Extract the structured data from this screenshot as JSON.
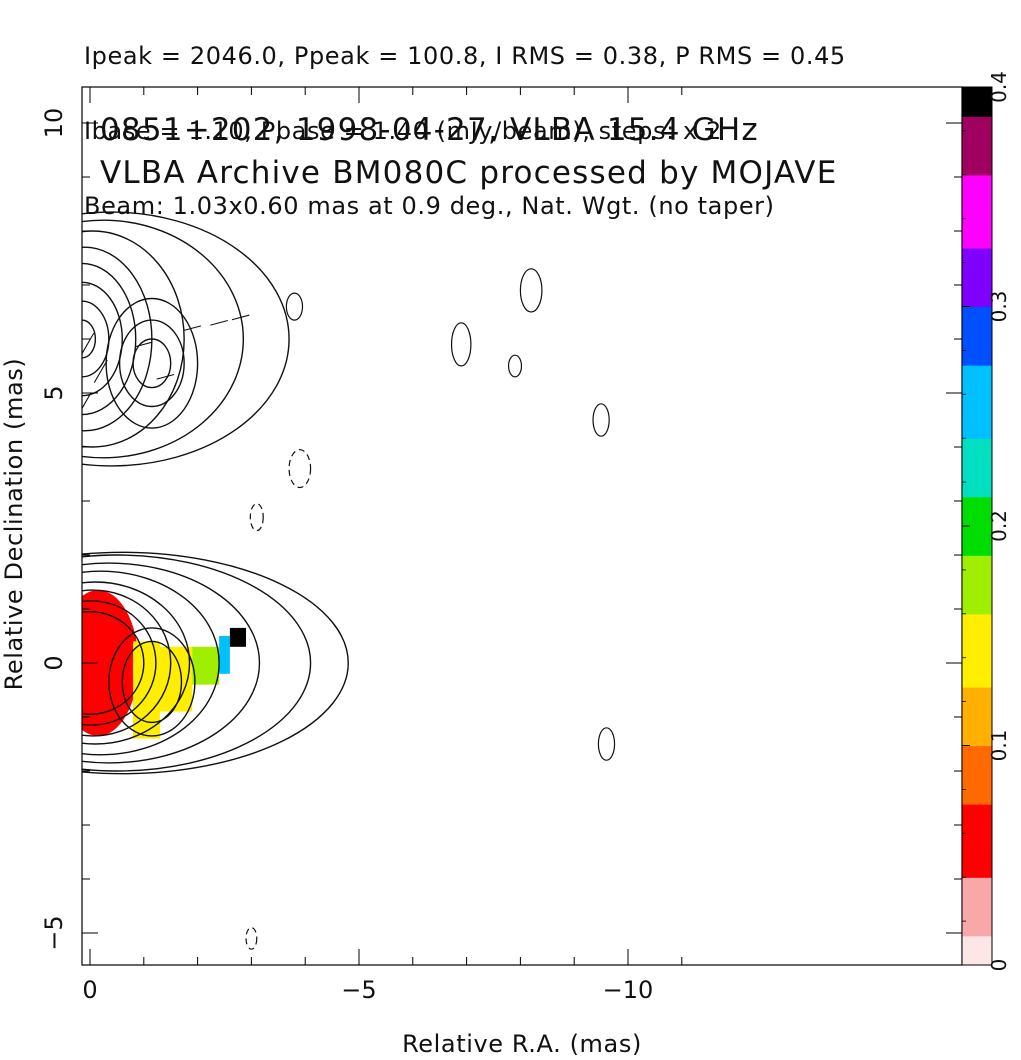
{
  "header": {
    "line1": "Ipeak = 2046.0, Ppeak = 100.8, I RMS = 0.38, P RMS = 0.45",
    "line2": "Ibase = 1.10, Pbase = 1.40 (mJy/beam), steps: x 2",
    "line3": "Beam: 1.03x0.60 mas at 0.9 deg., Nat. Wgt. (no taper)"
  },
  "chart_data": {
    "type": "heatmap",
    "title": "0851+202, 1998-04-27, VLBA 15.4 GHz",
    "subtitle": "VLBA Archive BM080C processed by MOJAVE",
    "xlabel": "Relative R.A. (mas)",
    "ylabel": "Relative Declination (mas)",
    "xlim": [
      5.2,
      -11.0
    ],
    "ylim": [
      -5.5,
      10.5
    ],
    "x_ticks": [
      5,
      0,
      -5,
      -10
    ],
    "x_tick_labels": [
      "5",
      "0",
      "−5",
      "−10"
    ],
    "y_ticks": [
      -5,
      0,
      5,
      10
    ],
    "y_tick_labels": [
      "−5",
      "0",
      "5",
      "10"
    ],
    "grid": false,
    "colorbar": {
      "min": 0,
      "max": 0.4,
      "ticks": [
        0,
        0.1,
        0.2,
        0.3,
        0.4
      ],
      "tick_labels": [
        "0",
        "0.1",
        "0.2",
        "0.3",
        "0.4"
      ],
      "colors": [
        "#fde6e6",
        "#f8a8a8",
        "#ff0000",
        "#ff6a00",
        "#ffb000",
        "#ffee00",
        "#a0ee00",
        "#00dd00",
        "#00e0c0",
        "#00c0ff",
        "#0050ff",
        "#8000ff",
        "#ff00ff",
        "#a00060",
        "#000000"
      ]
    },
    "contours": [
      {
        "source": "core",
        "x": 0.0,
        "y": 0.0,
        "levels": [
          [
            1.0,
            0.95
          ],
          [
            1.2,
            1.15
          ],
          [
            1.45,
            1.35
          ],
          [
            1.75,
            1.5
          ],
          [
            2.2,
            1.7
          ],
          [
            2.8,
            1.85
          ],
          [
            3.6,
            2.0
          ],
          [
            4.2,
            2.05
          ]
        ],
        "dx_shift": [
          0,
          -0.05,
          -0.1,
          -0.2,
          -0.4,
          -0.7,
          -1.0,
          -1.2
        ]
      },
      {
        "source": "knot",
        "x": -1.15,
        "y": -0.35,
        "levels": [
          [
            0.55,
            0.75
          ],
          [
            0.8,
            1.0
          ]
        ]
      },
      {
        "source": "upper-core",
        "x": 0.15,
        "y": 6.0,
        "levels": [
          [
            0.25,
            0.35
          ],
          [
            0.5,
            0.7
          ],
          [
            0.75,
            1.05
          ],
          [
            1.0,
            1.4
          ],
          [
            1.25,
            1.7
          ],
          [
            1.7,
            2.0
          ],
          [
            2.6,
            2.2
          ],
          [
            3.3,
            2.35
          ]
        ],
        "dx_shift": [
          0,
          0,
          0,
          0,
          -0.1,
          -0.4,
          -0.8,
          -1.1
        ]
      },
      {
        "source": "upper-knot",
        "x": -1.15,
        "y": 5.55,
        "levels": [
          [
            0.35,
            0.45
          ],
          [
            0.6,
            0.8
          ],
          [
            0.85,
            1.2
          ]
        ]
      }
    ],
    "polarization_regions": [
      {
        "x": [
          -0.9,
          0.6
        ],
        "y": [
          -1.35,
          1.35
        ],
        "value": 0.05
      },
      {
        "x": [
          -1.3,
          -0.8
        ],
        "y": [
          -1.4,
          0.4
        ],
        "value": 0.13
      },
      {
        "x": [
          -1.9,
          -1.3
        ],
        "y": [
          -0.9,
          0.3
        ],
        "value": 0.14
      },
      {
        "x": [
          -2.4,
          -1.9
        ],
        "y": [
          -0.4,
          0.3
        ],
        "value": 0.16
      },
      {
        "x": [
          -2.6,
          -2.4
        ],
        "y": [
          -0.2,
          0.5
        ],
        "value": 0.25
      },
      {
        "x": [
          -2.9,
          -2.6
        ],
        "y": [
          0.3,
          0.65
        ],
        "value": 0.4
      }
    ],
    "beam": {
      "major": 1.03,
      "minor": 0.6,
      "pa_deg": 0.9,
      "x": 4.0,
      "y": -4.6
    }
  }
}
